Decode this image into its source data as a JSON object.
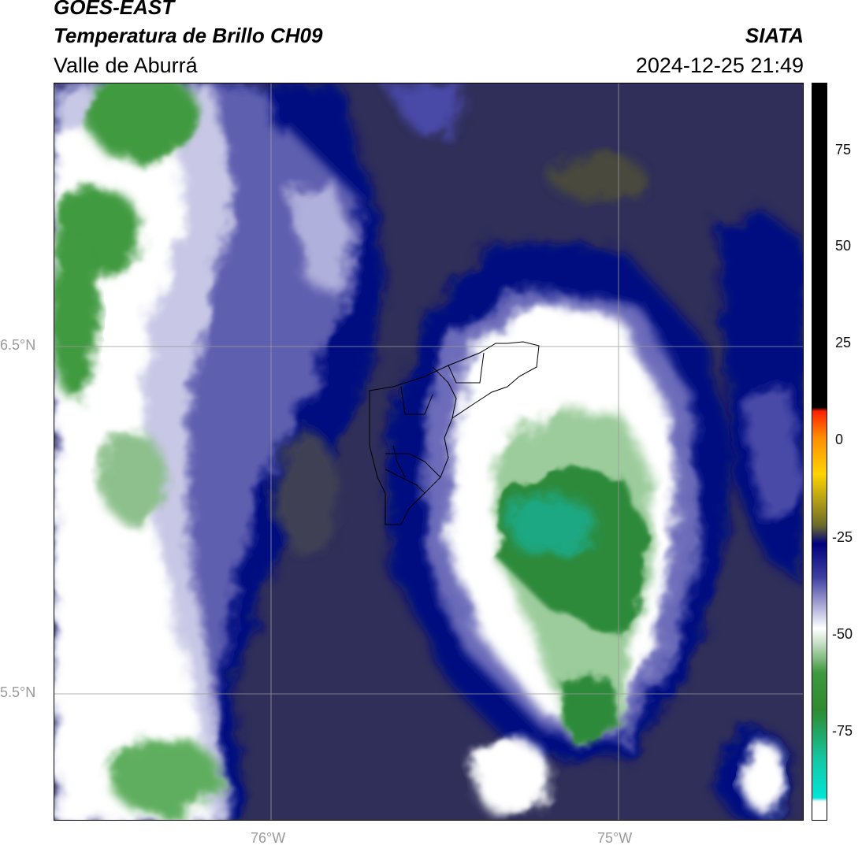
{
  "header": {
    "title_line1": "GOES-EAST",
    "title_line2": "Temperatura de Brillo CH09",
    "region": "Valle de Aburrá",
    "agency": "SIATA",
    "datetime": "2024-12-25 21:49"
  },
  "map": {
    "lat_labels": [
      "6.5°N",
      "5.5°N"
    ],
    "lon_labels": [
      "76°W",
      "75°W"
    ],
    "gridline_color": "#9a9a9a",
    "background_color": "#2f2f5a",
    "feature": "municipal boundaries outline"
  },
  "colorbar": {
    "tick_labels": [
      "75",
      "50",
      "25",
      "0",
      "-25",
      "-50",
      "-75"
    ],
    "range": [
      -96,
      92
    ],
    "colors": {
      "black": "#000000",
      "red": "#ff2000",
      "orange": "#ff8c00",
      "yellow": "#ffff00",
      "olive": "#6d6d2a",
      "navy": "#00007f",
      "lavender": "#c8c8e6",
      "white": "#ffffff",
      "green": "#2e8b2e",
      "cyan": "#00e6d6"
    }
  }
}
